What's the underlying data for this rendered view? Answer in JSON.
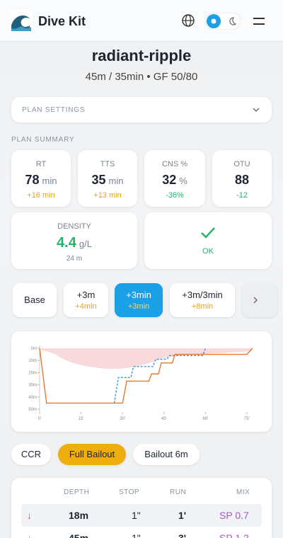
{
  "header": {
    "brand": "Dive Kit"
  },
  "plan": {
    "title": "radiant-ripple",
    "subtitle": "45m / 35min • GF 50/80"
  },
  "plan_settings": {
    "label": "PLAN SETTINGS"
  },
  "summary": {
    "label": "PLAN SUMMARY",
    "stats": [
      {
        "label": "RT",
        "value": "78",
        "unit": "min",
        "delta": "+16 min"
      },
      {
        "label": "TTS",
        "value": "35",
        "unit": "min",
        "delta": "+13 min"
      },
      {
        "label": "CNS %",
        "value": "32",
        "unit": "%",
        "delta": "-36%"
      },
      {
        "label": "OTU",
        "value": "88",
        "delta": "-12"
      }
    ],
    "density": {
      "label": "DENSITY",
      "value": "4.4",
      "unit": "g/L",
      "depth": "24 m"
    },
    "status": {
      "label": "OK"
    }
  },
  "scenarios": [
    {
      "label": "Base"
    },
    {
      "label": "+3m",
      "sub": "+4min"
    },
    {
      "label": "+3min",
      "sub": "+3min"
    },
    {
      "label": "+3m/3min",
      "sub": "+8min"
    }
  ],
  "profile_chart": {
    "type": "line",
    "xlim": [
      0,
      75
    ],
    "ylim": [
      0,
      50
    ],
    "y_inverted": true,
    "xticks": [
      {
        "value": 0,
        "label": "0'"
      },
      {
        "value": 15,
        "label": "15'"
      },
      {
        "value": 30,
        "label": "30'"
      },
      {
        "value": 45,
        "label": "45'"
      },
      {
        "value": 60,
        "label": "60'"
      },
      {
        "value": 75,
        "label": "75'"
      }
    ],
    "yticks": [
      {
        "value": 0,
        "label": "0m"
      },
      {
        "value": 10,
        "label": "10m"
      },
      {
        "value": 20,
        "label": "20m"
      },
      {
        "value": 30,
        "label": "30m"
      },
      {
        "value": 40,
        "label": "40m"
      },
      {
        "value": 50,
        "label": "50m"
      }
    ],
    "series": [
      {
        "color": "#e8762b",
        "dashed": false,
        "x": [
          0,
          2.5,
          30,
          31.5,
          39.5,
          40.5,
          43,
          44,
          48,
          49,
          75,
          77
        ],
        "values": [
          0,
          45,
          45,
          27,
          27,
          21,
          21,
          12,
          12,
          5,
          5,
          0
        ]
      },
      {
        "color": "#3a9ad9",
        "dashed": true,
        "x": [
          27,
          28.5,
          33,
          34,
          41,
          42,
          46,
          47,
          59,
          60
        ],
        "values": [
          45,
          24,
          24,
          15,
          15,
          9,
          9,
          6,
          6,
          0
        ]
      }
    ]
  },
  "modes": [
    {
      "label": "CCR"
    },
    {
      "label": "Full Bailout"
    },
    {
      "label": "Bailout 6m"
    }
  ],
  "table": {
    "columns": [
      "DEPTH",
      "STOP",
      "RUN",
      "MIX"
    ],
    "rows": [
      [
        "18m",
        "1\"",
        "1'",
        "SP 0.7"
      ],
      [
        "45m",
        "1\"",
        "3'",
        "SP 1.2"
      ]
    ]
  }
}
